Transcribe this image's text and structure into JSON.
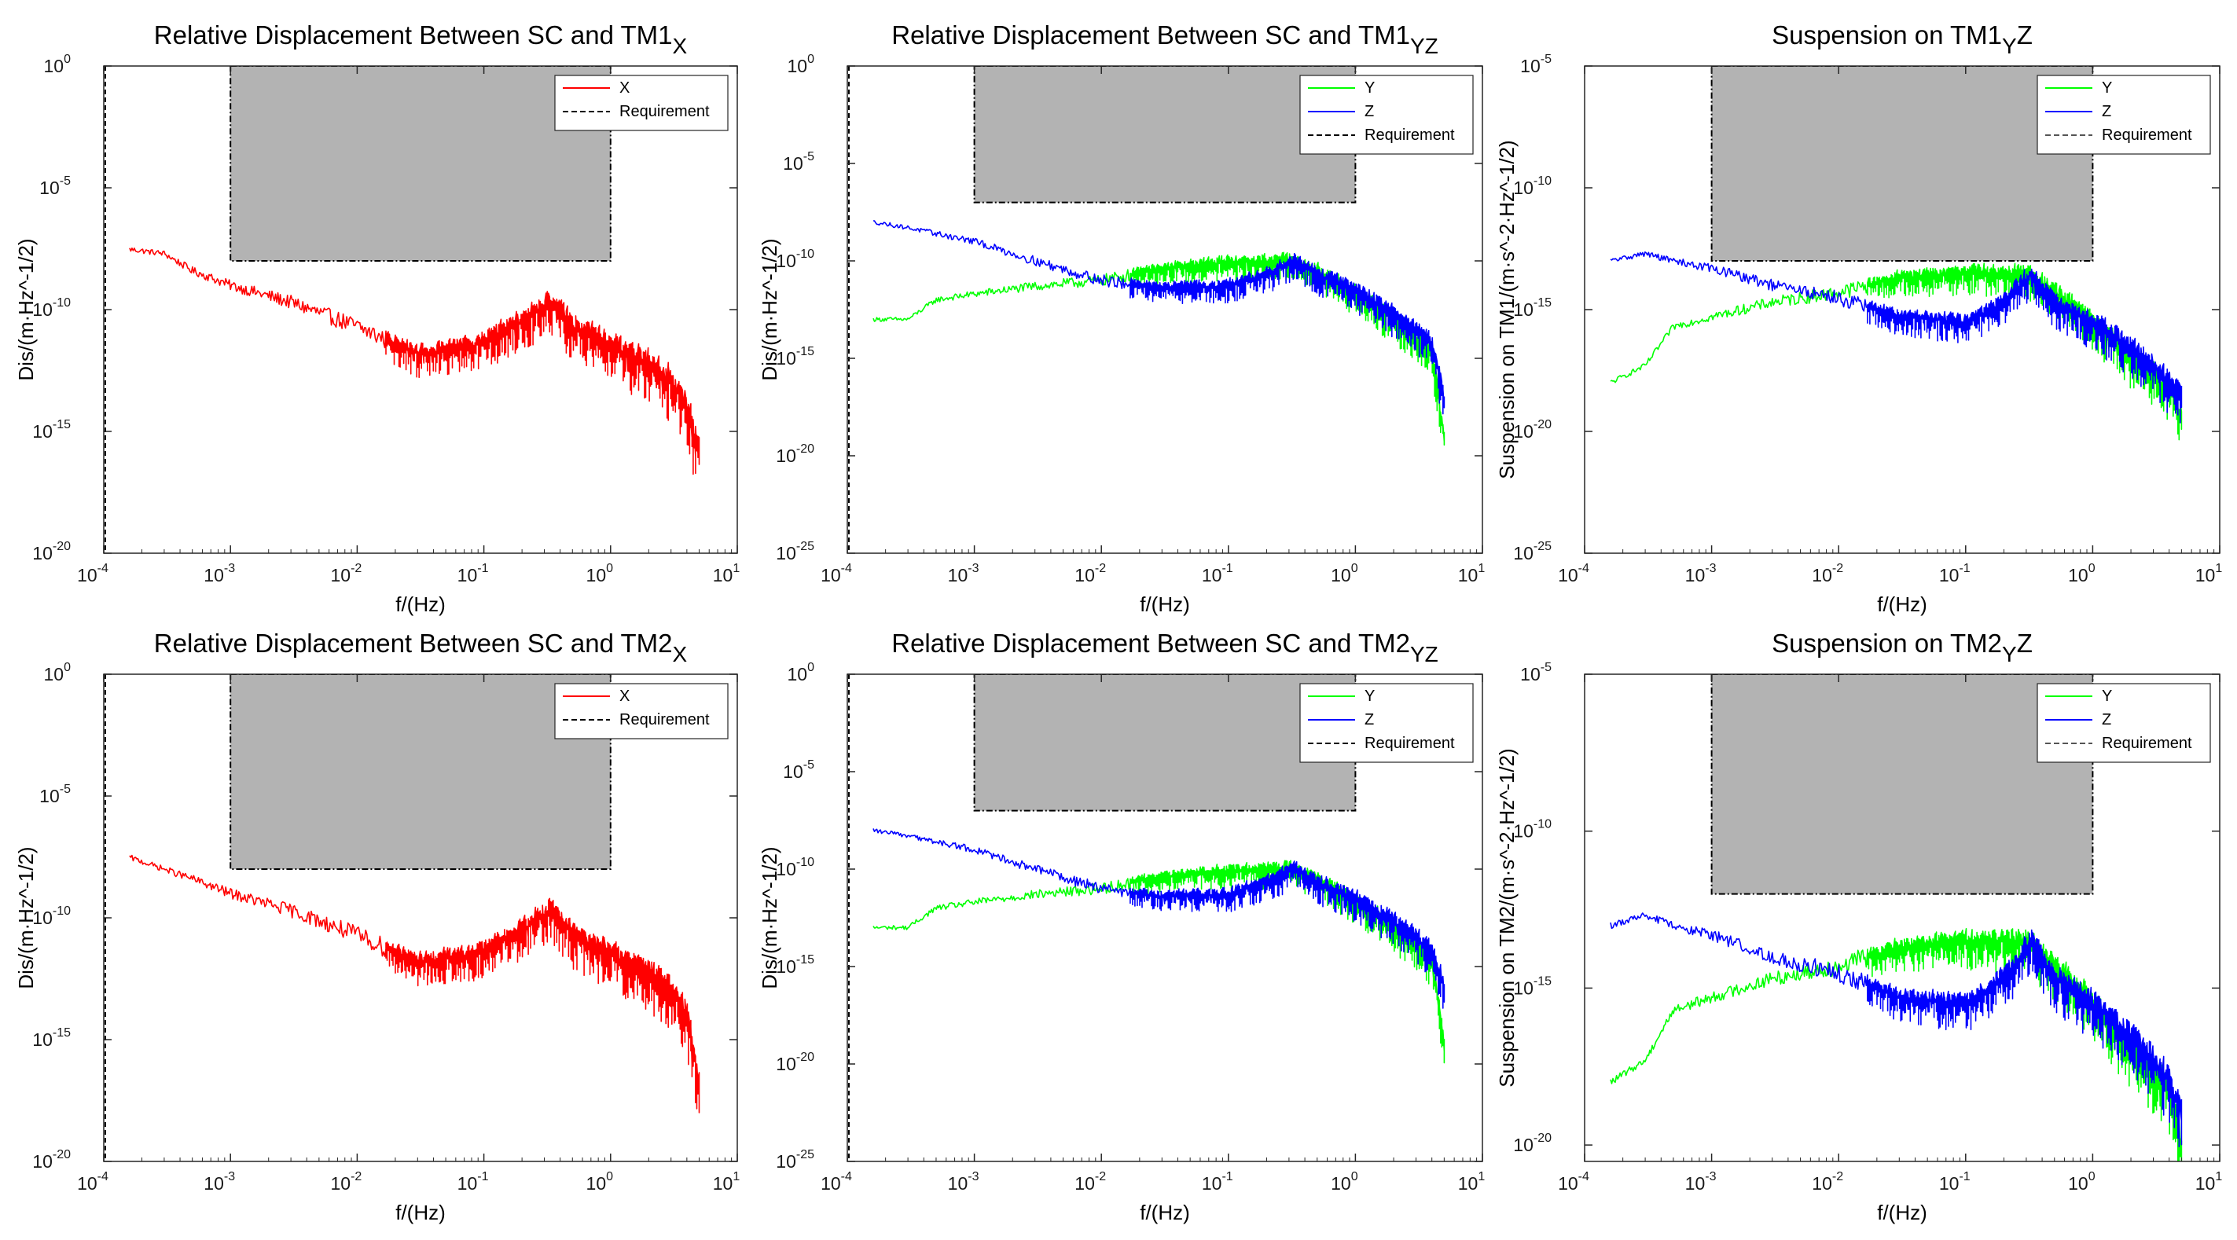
{
  "figure": {
    "panels": [
      {
        "id": "p1",
        "title_main": "Relative Displacement Between SC and TM1",
        "title_sub": "X",
        "ylabel": "Dis/(m·Hz⁻¹ᐟ²)"
      },
      {
        "id": "p2",
        "title_main": "Relative Displacement Between SC and TM1",
        "title_sub": "YZ",
        "ylabel": "Dis/(m·Hz⁻¹ᐟ²)"
      },
      {
        "id": "p3",
        "title_main": "Suspension on TM1",
        "title_sub": "Y",
        "title_tail": "Z",
        "ylabel": "Suspension on TM1/(m·s⁻²·Hz⁻¹ᐟ²)"
      },
      {
        "id": "p4",
        "title_main": "Relative Displacement Between SC and TM2",
        "title_sub": "X",
        "ylabel": "Dis/(m·Hz⁻¹ᐟ²)"
      },
      {
        "id": "p5",
        "title_main": "Relative Displacement Between SC and TM2",
        "title_sub": "YZ",
        "ylabel": "Dis/(m·Hz⁻¹ᐟ²)"
      },
      {
        "id": "p6",
        "title_main": "Suspension on TM2",
        "title_sub": "Y",
        "title_tail": "Z",
        "ylabel": "Suspension on TM2/(m·s⁻²·Hz⁻¹ᐟ²)"
      }
    ]
  },
  "chart_data": [
    {
      "type": "line",
      "title": "Relative Displacement Between SC and TM1",
      "title_subscript": "X",
      "xlabel": "f/(Hz)",
      "ylabel": "Dis/(m·Hz^-1/2)",
      "xscale": "log",
      "yscale": "log",
      "xlim": [
        0.0001,
        10
      ],
      "ylim": [
        1e-20,
        1
      ],
      "legend_location": "top-right",
      "xticks": [
        "10^-4",
        "10^-3",
        "10^-2",
        "10^-1",
        "10^0",
        "10^1"
      ],
      "yticks": [
        "10^-20",
        "10^-15",
        "10^-10",
        "10^-5",
        "10^0"
      ],
      "requirement_region": {
        "x": [
          0.001,
          1
        ],
        "y": [
          1e-08,
          1
        ]
      },
      "series": [
        {
          "name": "X",
          "color": "#ff0000",
          "points": [
            [
              0.00016,
              3e-08
            ],
            [
              0.0003,
              2e-08
            ],
            [
              0.0005,
              4e-09
            ],
            [
              0.001,
              1e-09
            ],
            [
              0.003,
              2e-10
            ],
            [
              0.01,
              2e-11
            ],
            [
              0.03,
              1.5e-12
            ],
            [
              0.08,
              3e-12
            ],
            [
              0.2,
              3e-11
            ],
            [
              0.33,
              2e-10
            ],
            [
              0.5,
              2e-11
            ],
            [
              1,
              3e-12
            ],
            [
              2,
              5e-13
            ],
            [
              3,
              1e-13
            ],
            [
              4,
              1e-14
            ],
            [
              5,
              1e-16
            ]
          ],
          "band": 4
        },
        {
          "name": "Requirement",
          "color": "#000000",
          "style": "dashed"
        }
      ]
    },
    {
      "type": "line",
      "title": "Relative Displacement Between SC and TM1",
      "title_subscript": "YZ",
      "xlabel": "f/(Hz)",
      "ylabel": "Dis/(m·Hz^-1/2)",
      "xscale": "log",
      "yscale": "log",
      "xlim": [
        0.0001,
        10
      ],
      "ylim": [
        1e-25,
        1
      ],
      "legend_location": "top-right",
      "xticks": [
        "10^-4",
        "10^-3",
        "10^-2",
        "10^-1",
        "10^0",
        "10^1"
      ],
      "yticks": [
        "10^-25",
        "10^-20",
        "10^-15",
        "10^-10",
        "10^-5",
        "10^0"
      ],
      "requirement_region": {
        "x": [
          0.001,
          1
        ],
        "y": [
          1e-07,
          1
        ]
      },
      "series": [
        {
          "name": "Y",
          "color": "#00ff00",
          "points": [
            [
              0.00016,
              1e-13
            ],
            [
              0.0003,
              1e-13
            ],
            [
              0.0005,
              1e-12
            ],
            [
              0.001,
              2e-12
            ],
            [
              0.003,
              5e-12
            ],
            [
              0.01,
              1e-11
            ],
            [
              0.03,
              4e-11
            ],
            [
              0.1,
              8e-11
            ],
            [
              0.3,
              1e-10
            ],
            [
              0.5,
              3e-11
            ],
            [
              1,
              2e-12
            ],
            [
              2,
              1e-13
            ],
            [
              3,
              1e-14
            ],
            [
              4,
              2e-15
            ],
            [
              5,
              1e-19
            ]
          ],
          "band": 3
        },
        {
          "name": "Z",
          "color": "#0000ff",
          "points": [
            [
              0.00016,
              1e-08
            ],
            [
              0.0003,
              5e-09
            ],
            [
              0.001,
              1e-09
            ],
            [
              0.003,
              1e-10
            ],
            [
              0.01,
              1e-11
            ],
            [
              0.03,
              4e-12
            ],
            [
              0.1,
              5e-12
            ],
            [
              0.2,
              2e-11
            ],
            [
              0.33,
              1e-10
            ],
            [
              0.5,
              2e-11
            ],
            [
              1,
              3e-12
            ],
            [
              2,
              2e-13
            ],
            [
              3,
              3e-14
            ],
            [
              4,
              5e-15
            ],
            [
              5,
              1e-17
            ]
          ],
          "band": 3
        },
        {
          "name": "Requirement",
          "color": "#000000",
          "style": "dashed"
        }
      ]
    },
    {
      "type": "line",
      "title": "Suspension on TM1",
      "title_subscript": "Y",
      "title_tail": "Z",
      "xlabel": "f/(Hz)",
      "ylabel": "Suspension on TM1/(m·s^-2·Hz^-1/2)",
      "xscale": "log",
      "yscale": "log",
      "xlim": [
        0.0001,
        10
      ],
      "ylim": [
        1e-25,
        1e-05
      ],
      "legend_location": "top-right",
      "xticks": [
        "10^-4",
        "10^-3",
        "10^-2",
        "10^-1",
        "10^0",
        "10^1"
      ],
      "yticks": [
        "10^-25",
        "10^-20",
        "10^-15",
        "10^-10",
        "10^-5"
      ],
      "requirement_region": {
        "x": [
          0.001,
          1
        ],
        "y": [
          1e-13,
          1e-05
        ]
      },
      "series": [
        {
          "name": "Y",
          "color": "#00ff00",
          "points": [
            [
              0.00016,
              1e-18
            ],
            [
              0.0003,
              5e-18
            ],
            [
              0.0005,
              2e-16
            ],
            [
              0.001,
              5e-16
            ],
            [
              0.003,
              2e-15
            ],
            [
              0.01,
              5e-15
            ],
            [
              0.03,
              2e-14
            ],
            [
              0.1,
              3e-14
            ],
            [
              0.3,
              3e-14
            ],
            [
              0.5,
              5e-15
            ],
            [
              1,
              3e-16
            ],
            [
              2,
              1e-17
            ],
            [
              3,
              2e-18
            ],
            [
              4,
              5e-19
            ],
            [
              5,
              5e-20
            ]
          ],
          "band": 3
        },
        {
          "name": "Z",
          "color": "#0000ff",
          "points": [
            [
              0.00016,
              1e-13
            ],
            [
              0.0003,
              2e-13
            ],
            [
              0.0005,
              1e-13
            ],
            [
              0.001,
              5e-14
            ],
            [
              0.003,
              1e-14
            ],
            [
              0.01,
              3e-15
            ],
            [
              0.03,
              5e-16
            ],
            [
              0.1,
              3e-16
            ],
            [
              0.2,
              2e-15
            ],
            [
              0.33,
              3e-14
            ],
            [
              0.5,
              2e-15
            ],
            [
              1,
              3e-16
            ],
            [
              2,
              3e-17
            ],
            [
              3,
              5e-18
            ],
            [
              4,
              1e-18
            ],
            [
              5,
              3e-19
            ]
          ],
          "band": 3
        },
        {
          "name": "Requirement",
          "color": "#555555",
          "style": "dashed"
        }
      ]
    },
    {
      "type": "line",
      "title": "Relative Displacement Between SC and TM2",
      "title_subscript": "X",
      "xlabel": "f/(Hz)",
      "ylabel": "Dis/(m·Hz^-1/2)",
      "xscale": "log",
      "yscale": "log",
      "xlim": [
        0.0001,
        10
      ],
      "ylim": [
        1e-20,
        1
      ],
      "legend_location": "top-right",
      "xticks": [
        "10^-4",
        "10^-3",
        "10^-2",
        "10^-1",
        "10^0",
        "10^1"
      ],
      "yticks": [
        "10^-20",
        "10^-15",
        "10^-10",
        "10^-5",
        "10^0"
      ],
      "requirement_region": {
        "x": [
          0.001,
          1
        ],
        "y": [
          1e-08,
          1
        ]
      },
      "series": [
        {
          "name": "X",
          "color": "#ff0000",
          "points": [
            [
              0.00016,
              3e-08
            ],
            [
              0.0003,
              1e-08
            ],
            [
              0.0005,
              4e-09
            ],
            [
              0.001,
              1e-09
            ],
            [
              0.003,
              2e-10
            ],
            [
              0.01,
              2e-11
            ],
            [
              0.03,
              1.5e-12
            ],
            [
              0.08,
              3e-12
            ],
            [
              0.2,
              3e-11
            ],
            [
              0.33,
              2e-10
            ],
            [
              0.5,
              2e-11
            ],
            [
              1,
              3e-12
            ],
            [
              2,
              5e-13
            ],
            [
              3,
              1e-13
            ],
            [
              4,
              1e-14
            ],
            [
              5,
              1e-17
            ]
          ],
          "band": 4
        },
        {
          "name": "Requirement",
          "color": "#000000",
          "style": "dashed"
        }
      ]
    },
    {
      "type": "line",
      "title": "Relative Displacement Between SC and TM2",
      "title_subscript": "YZ",
      "xlabel": "f/(Hz)",
      "ylabel": "Dis/(m·Hz^-1/2)",
      "xscale": "log",
      "yscale": "log",
      "xlim": [
        0.0001,
        10
      ],
      "ylim": [
        1e-25,
        1
      ],
      "legend_location": "top-right",
      "xticks": [
        "10^-4",
        "10^-3",
        "10^-2",
        "10^-1",
        "10^0",
        "10^1"
      ],
      "yticks": [
        "10^-25",
        "10^-20",
        "10^-15",
        "10^-10",
        "10^-5",
        "10^0"
      ],
      "requirement_region": {
        "x": [
          0.001,
          1
        ],
        "y": [
          1e-07,
          1
        ]
      },
      "series": [
        {
          "name": "Y",
          "color": "#00ff00",
          "points": [
            [
              0.00016,
              1e-13
            ],
            [
              0.0003,
              1e-13
            ],
            [
              0.0005,
              1e-12
            ],
            [
              0.001,
              2e-12
            ],
            [
              0.003,
              5e-12
            ],
            [
              0.01,
              1e-11
            ],
            [
              0.03,
              4e-11
            ],
            [
              0.1,
              8e-11
            ],
            [
              0.3,
              1e-10
            ],
            [
              0.5,
              3e-11
            ],
            [
              1,
              2e-12
            ],
            [
              2,
              1e-13
            ],
            [
              3,
              1e-14
            ],
            [
              4,
              2e-15
            ],
            [
              5,
              1e-19
            ]
          ],
          "band": 3
        },
        {
          "name": "Z",
          "color": "#0000ff",
          "points": [
            [
              0.00016,
              1e-08
            ],
            [
              0.0003,
              5e-09
            ],
            [
              0.001,
              1e-09
            ],
            [
              0.003,
              1e-10
            ],
            [
              0.01,
              1e-11
            ],
            [
              0.03,
              4e-12
            ],
            [
              0.1,
              5e-12
            ],
            [
              0.2,
              2e-11
            ],
            [
              0.33,
              1e-10
            ],
            [
              0.5,
              2e-11
            ],
            [
              1,
              3e-12
            ],
            [
              2,
              2e-13
            ],
            [
              3,
              3e-14
            ],
            [
              4,
              5e-15
            ],
            [
              5,
              1e-16
            ]
          ],
          "band": 3
        },
        {
          "name": "Requirement",
          "color": "#000000",
          "style": "dashed"
        }
      ]
    },
    {
      "type": "line",
      "title": "Suspension on TM2",
      "title_subscript": "Y",
      "title_tail": "Z",
      "xlabel": "f/(Hz)",
      "ylabel": "Suspension on TM2/(m·s^-2·Hz^-1/2)",
      "xscale": "log",
      "yscale": "log",
      "xlim": [
        0.0001,
        10
      ],
      "ylim": [
        3e-21,
        1e-05
      ],
      "legend_location": "top-right",
      "xticks": [
        "10^-4",
        "10^-3",
        "10^-2",
        "10^-1",
        "10^0",
        "10^1"
      ],
      "yticks": [
        "10^-20",
        "10^-15",
        "10^-10",
        "10^-5"
      ],
      "requirement_region": {
        "x": [
          0.001,
          1
        ],
        "y": [
          1e-12,
          1e-05
        ]
      },
      "series": [
        {
          "name": "Y",
          "color": "#00ff00",
          "points": [
            [
              0.00016,
              1e-18
            ],
            [
              0.0003,
              5e-18
            ],
            [
              0.0005,
              2e-16
            ],
            [
              0.001,
              5e-16
            ],
            [
              0.003,
              2e-15
            ],
            [
              0.01,
              5e-15
            ],
            [
              0.03,
              2e-14
            ],
            [
              0.1,
              3e-14
            ],
            [
              0.3,
              3e-14
            ],
            [
              0.5,
              5e-15
            ],
            [
              1,
              3e-16
            ],
            [
              2,
              1e-17
            ],
            [
              3,
              2e-18
            ],
            [
              4,
              5e-19
            ],
            [
              5,
              1e-20
            ]
          ],
          "band": 3
        },
        {
          "name": "Z",
          "color": "#0000ff",
          "points": [
            [
              0.00016,
              1e-13
            ],
            [
              0.0003,
              2e-13
            ],
            [
              0.0005,
              1e-13
            ],
            [
              0.001,
              5e-14
            ],
            [
              0.003,
              1e-14
            ],
            [
              0.01,
              3e-15
            ],
            [
              0.03,
              5e-16
            ],
            [
              0.1,
              3e-16
            ],
            [
              0.2,
              2e-15
            ],
            [
              0.33,
              3e-14
            ],
            [
              0.5,
              2e-15
            ],
            [
              1,
              3e-16
            ],
            [
              2,
              3e-17
            ],
            [
              3,
              5e-18
            ],
            [
              4,
              1e-18
            ],
            [
              5,
              1e-19
            ]
          ],
          "band": 3
        },
        {
          "name": "Requirement",
          "color": "#555555",
          "style": "dashed"
        }
      ]
    }
  ]
}
